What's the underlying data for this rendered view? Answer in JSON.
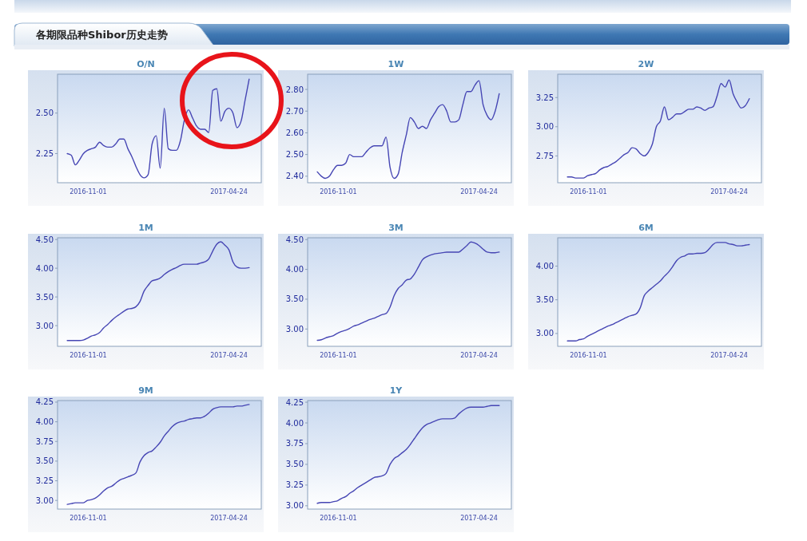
{
  "chart_data": [
    {
      "type": "other",
      "title": "各期限品种Shibor历史走势"
    },
    {
      "type": "line",
      "title": "O/N",
      "xlim": [
        "2016-09-24",
        "2017-06-03"
      ],
      "xticks": [
        "2016-11-01",
        "2017-04-24"
      ],
      "ylim": [
        2.07,
        2.74
      ],
      "yticks": [
        2.25,
        {
          "value": 2.5,
          "label": "2.50"
        }
      ],
      "x": [
        "2016-10-06",
        "2016-10-11",
        "2016-10-16",
        "2016-10-21",
        "2016-10-26",
        "2016-10-31",
        "2016-11-05",
        "2016-11-10",
        "2016-11-15",
        "2016-11-20",
        "2016-11-25",
        "2016-11-30",
        "2016-12-05",
        "2016-12-10",
        "2016-12-15",
        "2016-12-20",
        "2016-12-25",
        "2016-12-30",
        "2017-01-04",
        "2017-01-09",
        "2017-01-14",
        "2017-01-19",
        "2017-01-24",
        "2017-01-29",
        "2017-02-03",
        "2017-02-08",
        "2017-02-13",
        "2017-02-18",
        "2017-02-23",
        "2017-02-28",
        "2017-03-05",
        "2017-03-10",
        "2017-03-15",
        "2017-03-20",
        "2017-03-25",
        "2017-03-30",
        "2017-04-04",
        "2017-04-09",
        "2017-04-14",
        "2017-04-19",
        "2017-04-24",
        "2017-04-29",
        "2017-05-04",
        "2017-05-09",
        "2017-05-14",
        "2017-05-19"
      ],
      "series": [
        {
          "color": "#4646b4",
          "values": [
            2.25,
            2.24,
            2.18,
            2.21,
            2.25,
            2.27,
            2.28,
            2.29,
            2.32,
            2.3,
            2.29,
            2.29,
            2.31,
            2.34,
            2.34,
            2.28,
            2.23,
            2.17,
            2.12,
            2.1,
            2.12,
            2.31,
            2.36,
            2.16,
            2.53,
            2.28,
            2.27,
            2.27,
            2.33,
            2.46,
            2.52,
            2.47,
            2.42,
            2.4,
            2.4,
            2.38,
            2.64,
            2.65,
            2.45,
            2.51,
            2.53,
            2.5,
            2.41,
            2.45,
            2.58,
            2.71
          ]
        }
      ]
    },
    {
      "type": "line",
      "title": "1W",
      "xlim": [
        "2016-09-24",
        "2017-06-03"
      ],
      "xticks": [
        "2016-11-01",
        "2017-04-24"
      ],
      "ylim": [
        2.37,
        2.87
      ],
      "yticks": [
        {
          "value": 2.4,
          "label": "2.40"
        },
        {
          "value": 2.5,
          "label": "2.50"
        },
        {
          "value": 2.6,
          "label": "2.60"
        },
        {
          "value": 2.7,
          "label": "2.70"
        },
        {
          "value": 2.8,
          "label": "2.80"
        }
      ],
      "x": [
        "2016-10-06",
        "2016-10-11",
        "2016-10-16",
        "2016-10-21",
        "2016-10-26",
        "2016-10-31",
        "2016-11-05",
        "2016-11-10",
        "2016-11-15",
        "2016-11-20",
        "2016-11-25",
        "2016-11-30",
        "2016-12-05",
        "2016-12-10",
        "2016-12-15",
        "2016-12-20",
        "2016-12-25",
        "2016-12-30",
        "2017-01-04",
        "2017-01-09",
        "2017-01-14",
        "2017-01-19",
        "2017-01-24",
        "2017-01-29",
        "2017-02-03",
        "2017-02-08",
        "2017-02-13",
        "2017-02-18",
        "2017-02-23",
        "2017-02-28",
        "2017-03-05",
        "2017-03-10",
        "2017-03-15",
        "2017-03-20",
        "2017-03-25",
        "2017-03-30",
        "2017-04-04",
        "2017-04-09",
        "2017-04-14",
        "2017-04-19",
        "2017-04-24",
        "2017-04-29",
        "2017-05-04",
        "2017-05-09",
        "2017-05-14",
        "2017-05-19"
      ],
      "series": [
        {
          "color": "#4646b4",
          "values": [
            2.42,
            2.4,
            2.39,
            2.4,
            2.43,
            2.45,
            2.45,
            2.46,
            2.5,
            2.49,
            2.49,
            2.49,
            2.51,
            2.53,
            2.54,
            2.54,
            2.54,
            2.58,
            2.44,
            2.39,
            2.41,
            2.51,
            2.59,
            2.67,
            2.65,
            2.62,
            2.63,
            2.62,
            2.66,
            2.69,
            2.72,
            2.73,
            2.7,
            2.65,
            2.65,
            2.66,
            2.73,
            2.79,
            2.79,
            2.82,
            2.84,
            2.73,
            2.68,
            2.66,
            2.7,
            2.78
          ]
        }
      ]
    },
    {
      "type": "line",
      "title": "2W",
      "xlim": [
        "2016-09-24",
        "2017-06-03"
      ],
      "xticks": [
        "2016-11-01",
        "2017-04-24"
      ],
      "ylim": [
        2.52,
        3.45
      ],
      "yticks": [
        2.75,
        {
          "value": 3,
          "label": "3.00"
        },
        3.25
      ],
      "x": [
        "2016-10-06",
        "2016-10-11",
        "2016-10-16",
        "2016-10-21",
        "2016-10-26",
        "2016-10-31",
        "2016-11-05",
        "2016-11-10",
        "2016-11-15",
        "2016-11-20",
        "2016-11-25",
        "2016-11-30",
        "2016-12-05",
        "2016-12-10",
        "2016-12-15",
        "2016-12-20",
        "2016-12-25",
        "2016-12-30",
        "2017-01-04",
        "2017-01-09",
        "2017-01-14",
        "2017-01-19",
        "2017-01-24",
        "2017-01-29",
        "2017-02-03",
        "2017-02-08",
        "2017-02-13",
        "2017-02-18",
        "2017-02-23",
        "2017-02-28",
        "2017-03-05",
        "2017-03-10",
        "2017-03-15",
        "2017-03-20",
        "2017-03-25",
        "2017-03-30",
        "2017-04-04",
        "2017-04-09",
        "2017-04-14",
        "2017-04-19",
        "2017-04-24",
        "2017-04-29",
        "2017-05-04",
        "2017-05-09",
        "2017-05-14",
        "2017-05-19"
      ],
      "series": [
        {
          "color": "#4646b4",
          "values": [
            2.57,
            2.57,
            2.56,
            2.56,
            2.56,
            2.58,
            2.59,
            2.6,
            2.63,
            2.65,
            2.66,
            2.68,
            2.7,
            2.73,
            2.76,
            2.78,
            2.82,
            2.81,
            2.77,
            2.75,
            2.78,
            2.85,
            3.0,
            3.05,
            3.17,
            3.06,
            3.08,
            3.11,
            3.11,
            3.13,
            3.15,
            3.15,
            3.17,
            3.16,
            3.14,
            3.16,
            3.17,
            3.26,
            3.37,
            3.34,
            3.4,
            3.28,
            3.21,
            3.16,
            3.18,
            3.24
          ]
        }
      ]
    },
    {
      "type": "line",
      "title": "1M",
      "xlim": [
        "2016-09-24",
        "2017-06-03"
      ],
      "xticks": [
        "2016-11-01",
        "2017-04-24"
      ],
      "ylim": [
        2.64,
        4.53
      ],
      "yticks": [
        {
          "value": 3,
          "label": "3.00"
        },
        {
          "value": 3.5,
          "label": "3.50"
        },
        {
          "value": 4,
          "label": "4.00"
        },
        {
          "value": 4.5,
          "label": "4.50"
        }
      ],
      "x": [
        "2016-10-06",
        "2016-10-11",
        "2016-10-16",
        "2016-10-21",
        "2016-10-26",
        "2016-10-31",
        "2016-11-05",
        "2016-11-10",
        "2016-11-15",
        "2016-11-20",
        "2016-11-25",
        "2016-11-30",
        "2016-12-05",
        "2016-12-10",
        "2016-12-15",
        "2016-12-20",
        "2016-12-25",
        "2016-12-30",
        "2017-01-04",
        "2017-01-09",
        "2017-01-14",
        "2017-01-19",
        "2017-01-24",
        "2017-01-29",
        "2017-02-03",
        "2017-02-08",
        "2017-02-13",
        "2017-02-18",
        "2017-02-23",
        "2017-02-28",
        "2017-03-05",
        "2017-03-10",
        "2017-03-15",
        "2017-03-20",
        "2017-03-25",
        "2017-03-30",
        "2017-04-04",
        "2017-04-09",
        "2017-04-14",
        "2017-04-19",
        "2017-04-24",
        "2017-04-29",
        "2017-05-04",
        "2017-05-09",
        "2017-05-14",
        "2017-05-19"
      ],
      "series": [
        {
          "color": "#4646b4",
          "values": [
            2.74,
            2.74,
            2.74,
            2.74,
            2.75,
            2.78,
            2.82,
            2.84,
            2.88,
            2.96,
            3.02,
            3.09,
            3.15,
            3.2,
            3.25,
            3.29,
            3.3,
            3.33,
            3.42,
            3.6,
            3.7,
            3.78,
            3.8,
            3.83,
            3.89,
            3.94,
            3.98,
            4.01,
            4.05,
            4.07,
            4.07,
            4.07,
            4.07,
            4.09,
            4.11,
            4.16,
            4.3,
            4.42,
            4.46,
            4.4,
            4.32,
            4.11,
            4.02,
            4.0,
            4.0,
            4.01
          ]
        }
      ]
    },
    {
      "type": "line",
      "title": "3M",
      "xlim": [
        "2016-09-24",
        "2017-06-03"
      ],
      "xticks": [
        "2016-11-01",
        "2017-04-24"
      ],
      "ylim": [
        2.71,
        4.53
      ],
      "yticks": [
        {
          "value": 3,
          "label": "3.00"
        },
        {
          "value": 3.5,
          "label": "3.50"
        },
        {
          "value": 4,
          "label": "4.00"
        },
        {
          "value": 4.5,
          "label": "4.50"
        }
      ],
      "x": [
        "2016-10-06",
        "2016-10-11",
        "2016-10-16",
        "2016-10-21",
        "2016-10-26",
        "2016-10-31",
        "2016-11-05",
        "2016-11-10",
        "2016-11-15",
        "2016-11-20",
        "2016-11-25",
        "2016-11-30",
        "2016-12-05",
        "2016-12-10",
        "2016-12-15",
        "2016-12-20",
        "2016-12-25",
        "2016-12-30",
        "2017-01-04",
        "2017-01-09",
        "2017-01-14",
        "2017-01-19",
        "2017-01-24",
        "2017-01-29",
        "2017-02-03",
        "2017-02-08",
        "2017-02-13",
        "2017-02-18",
        "2017-02-23",
        "2017-02-28",
        "2017-03-05",
        "2017-03-10",
        "2017-03-15",
        "2017-03-20",
        "2017-03-25",
        "2017-03-30",
        "2017-04-04",
        "2017-04-09",
        "2017-04-14",
        "2017-04-19",
        "2017-04-24",
        "2017-04-29",
        "2017-05-04",
        "2017-05-09",
        "2017-05-14",
        "2017-05-19"
      ],
      "series": [
        {
          "color": "#4646b4",
          "values": [
            2.81,
            2.82,
            2.85,
            2.87,
            2.89,
            2.93,
            2.96,
            2.98,
            3.01,
            3.05,
            3.07,
            3.1,
            3.13,
            3.16,
            3.18,
            3.21,
            3.24,
            3.26,
            3.37,
            3.56,
            3.68,
            3.74,
            3.82,
            3.84,
            3.92,
            4.04,
            4.16,
            4.21,
            4.24,
            4.26,
            4.27,
            4.28,
            4.29,
            4.29,
            4.29,
            4.29,
            4.34,
            4.4,
            4.46,
            4.44,
            4.4,
            4.34,
            4.29,
            4.28,
            4.28,
            4.29
          ]
        }
      ]
    },
    {
      "type": "line",
      "title": "6M",
      "xlim": [
        "2016-09-24",
        "2017-06-03"
      ],
      "xticks": [
        "2016-11-01",
        "2017-04-24"
      ],
      "ylim": [
        2.81,
        4.42
      ],
      "yticks": [
        {
          "value": 3,
          "label": "3.00"
        },
        {
          "value": 3.5,
          "label": "3.50"
        },
        {
          "value": 4,
          "label": "4.00"
        }
      ],
      "x": [
        "2016-10-06",
        "2016-10-11",
        "2016-10-16",
        "2016-10-21",
        "2016-10-26",
        "2016-10-31",
        "2016-11-05",
        "2016-11-10",
        "2016-11-15",
        "2016-11-20",
        "2016-11-25",
        "2016-11-30",
        "2016-12-05",
        "2016-12-10",
        "2016-12-15",
        "2016-12-20",
        "2016-12-25",
        "2016-12-30",
        "2017-01-04",
        "2017-01-09",
        "2017-01-14",
        "2017-01-19",
        "2017-01-24",
        "2017-01-29",
        "2017-02-03",
        "2017-02-08",
        "2017-02-13",
        "2017-02-18",
        "2017-02-23",
        "2017-02-28",
        "2017-03-05",
        "2017-03-10",
        "2017-03-15",
        "2017-03-20",
        "2017-03-25",
        "2017-03-30",
        "2017-04-04",
        "2017-04-09",
        "2017-04-14",
        "2017-04-19",
        "2017-04-24",
        "2017-04-29",
        "2017-05-04",
        "2017-05-09",
        "2017-05-14",
        "2017-05-19"
      ],
      "series": [
        {
          "color": "#4646b4",
          "values": [
            2.89,
            2.89,
            2.89,
            2.91,
            2.92,
            2.96,
            2.99,
            3.02,
            3.05,
            3.08,
            3.11,
            3.13,
            3.16,
            3.19,
            3.22,
            3.25,
            3.27,
            3.29,
            3.38,
            3.56,
            3.63,
            3.68,
            3.73,
            3.78,
            3.85,
            3.91,
            3.99,
            4.08,
            4.13,
            4.15,
            4.18,
            4.18,
            4.19,
            4.19,
            4.2,
            4.25,
            4.32,
            4.35,
            4.35,
            4.35,
            4.33,
            4.32,
            4.3,
            4.3,
            4.31,
            4.32
          ]
        }
      ]
    },
    {
      "type": "line",
      "title": "9M",
      "xlim": [
        "2016-09-24",
        "2017-06-03"
      ],
      "xticks": [
        "2016-11-01",
        "2017-04-24"
      ],
      "ylim": [
        2.89,
        4.27
      ],
      "yticks": [
        {
          "value": 3,
          "label": "3.00"
        },
        3.25,
        {
          "value": 3.5,
          "label": "3.50"
        },
        3.75,
        {
          "value": 4,
          "label": "4.00"
        },
        4.25
      ],
      "x": [
        "2016-10-06",
        "2016-10-11",
        "2016-10-16",
        "2016-10-21",
        "2016-10-26",
        "2016-10-31",
        "2016-11-05",
        "2016-11-10",
        "2016-11-15",
        "2016-11-20",
        "2016-11-25",
        "2016-11-30",
        "2016-12-05",
        "2016-12-10",
        "2016-12-15",
        "2016-12-20",
        "2016-12-25",
        "2016-12-30",
        "2017-01-04",
        "2017-01-09",
        "2017-01-14",
        "2017-01-19",
        "2017-01-24",
        "2017-01-29",
        "2017-02-03",
        "2017-02-08",
        "2017-02-13",
        "2017-02-18",
        "2017-02-23",
        "2017-02-28",
        "2017-03-05",
        "2017-03-10",
        "2017-03-15",
        "2017-03-20",
        "2017-03-25",
        "2017-03-30",
        "2017-04-04",
        "2017-04-09",
        "2017-04-14",
        "2017-04-19",
        "2017-04-24",
        "2017-04-29",
        "2017-05-04",
        "2017-05-09",
        "2017-05-14",
        "2017-05-19"
      ],
      "series": [
        {
          "color": "#4646b4",
          "values": [
            2.95,
            2.96,
            2.97,
            2.97,
            2.97,
            3.0,
            3.01,
            3.03,
            3.07,
            3.12,
            3.16,
            3.18,
            3.22,
            3.26,
            3.28,
            3.3,
            3.32,
            3.35,
            3.49,
            3.57,
            3.61,
            3.63,
            3.68,
            3.74,
            3.82,
            3.88,
            3.94,
            3.98,
            4.0,
            4.01,
            4.03,
            4.04,
            4.05,
            4.05,
            4.07,
            4.11,
            4.16,
            4.18,
            4.19,
            4.19,
            4.19,
            4.19,
            4.2,
            4.2,
            4.21,
            4.22
          ]
        }
      ]
    },
    {
      "type": "line",
      "title": "1Y",
      "xlim": [
        "2016-09-24",
        "2017-06-03"
      ],
      "xticks": [
        "2016-11-01",
        "2017-04-24"
      ],
      "ylim": [
        2.96,
        4.27
      ],
      "yticks": [
        {
          "value": 3,
          "label": "3.00"
        },
        3.25,
        {
          "value": 3.5,
          "label": "3.50"
        },
        3.75,
        {
          "value": 4,
          "label": "4.00"
        },
        4.25
      ],
      "x": [
        "2016-10-06",
        "2016-10-11",
        "2016-10-16",
        "2016-10-21",
        "2016-10-26",
        "2016-10-31",
        "2016-11-05",
        "2016-11-10",
        "2016-11-15",
        "2016-11-20",
        "2016-11-25",
        "2016-11-30",
        "2016-12-05",
        "2016-12-10",
        "2016-12-15",
        "2016-12-20",
        "2016-12-25",
        "2016-12-30",
        "2017-01-04",
        "2017-01-09",
        "2017-01-14",
        "2017-01-19",
        "2017-01-24",
        "2017-01-29",
        "2017-02-03",
        "2017-02-08",
        "2017-02-13",
        "2017-02-18",
        "2017-02-23",
        "2017-02-28",
        "2017-03-05",
        "2017-03-10",
        "2017-03-15",
        "2017-03-20",
        "2017-03-25",
        "2017-03-30",
        "2017-04-04",
        "2017-04-09",
        "2017-04-14",
        "2017-04-19",
        "2017-04-24",
        "2017-04-29",
        "2017-05-04",
        "2017-05-09",
        "2017-05-14",
        "2017-05-19"
      ],
      "series": [
        {
          "color": "#4646b4",
          "values": [
            3.03,
            3.04,
            3.04,
            3.04,
            3.05,
            3.06,
            3.09,
            3.11,
            3.15,
            3.18,
            3.22,
            3.25,
            3.28,
            3.31,
            3.34,
            3.35,
            3.36,
            3.39,
            3.5,
            3.57,
            3.6,
            3.64,
            3.68,
            3.74,
            3.81,
            3.88,
            3.94,
            3.98,
            4.0,
            4.02,
            4.04,
            4.05,
            4.05,
            4.05,
            4.06,
            4.11,
            4.15,
            4.18,
            4.19,
            4.19,
            4.19,
            4.19,
            4.2,
            4.21,
            4.21,
            4.21
          ]
        }
      ]
    }
  ]
}
